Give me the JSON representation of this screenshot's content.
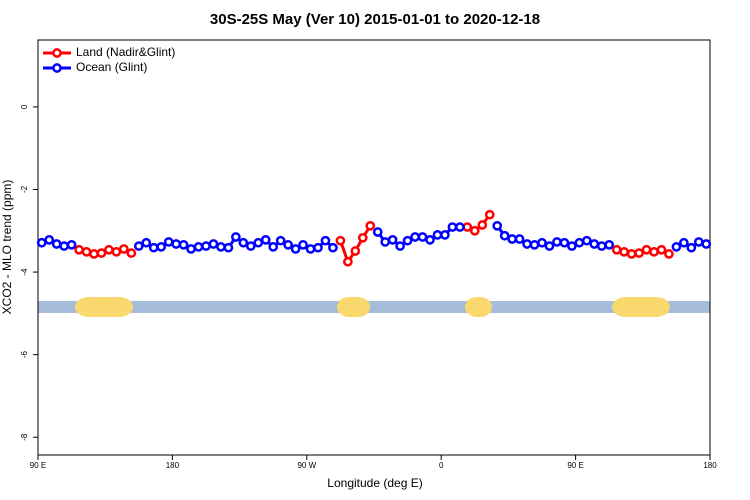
{
  "chart_data": {
    "type": "line",
    "title": "30S-25S May (Ver 10)   2015-01-01 to 2020-12-18",
    "x_label": "Longitude (deg E)",
    "y_label": "XCO2 - MLO trend (ppm)",
    "xlim": [
      90,
      540
    ],
    "ylim": [
      -8.43,
      1.62
    ],
    "xticks": [
      {
        "value": 90,
        "label": "90 E"
      },
      {
        "value": 180,
        "label": "180"
      },
      {
        "value": 270,
        "label": "90 W"
      },
      {
        "value": 360,
        "label": "0"
      },
      {
        "value": 450,
        "label": "90 E"
      },
      {
        "value": 540,
        "label": "180"
      }
    ],
    "yticks": [
      0,
      -2,
      -4,
      -6,
      -8
    ],
    "legend": "top-left",
    "x": [
      92.5,
      97.5,
      102.5,
      107.5,
      112.5,
      117.5,
      122.5,
      127.5,
      132.5,
      137.5,
      142.5,
      147.5,
      152.5,
      157.5,
      162.5,
      167.5,
      172.5,
      177.5,
      182.5,
      187.5,
      192.5,
      197.5,
      202.5,
      207.5,
      212.5,
      217.5,
      222.5,
      227.5,
      232.5,
      237.5,
      242.5,
      247.5,
      252.5,
      257.5,
      262.5,
      267.5,
      272.5,
      277.5,
      282.5,
      287.5,
      292.5,
      297.5,
      302.5,
      307.5,
      312.5,
      317.5,
      322.5,
      327.5,
      332.5,
      337.5,
      342.5,
      347.5,
      352.5,
      357.5,
      362.5,
      367.5,
      372.5,
      377.5,
      382.5,
      387.5,
      392.5,
      397.5,
      402.5,
      407.5,
      412.5,
      417.5,
      422.5,
      427.5,
      432.5,
      437.5,
      442.5,
      447.5,
      452.5,
      457.5,
      462.5,
      467.5,
      472.5,
      477.5,
      482.5,
      487.5,
      492.5,
      497.5,
      502.5,
      507.5,
      512.5,
      517.5,
      522.5,
      527.5,
      532.5,
      537.5
    ],
    "series": [
      {
        "name": "Land (Nadir&Glint)",
        "color": "#ff0000",
        "values": [
          null,
          null,
          null,
          null,
          null,
          -3.46,
          -3.51,
          -3.56,
          -3.54,
          -3.46,
          -3.51,
          -3.44,
          -3.54,
          null,
          null,
          null,
          null,
          null,
          null,
          null,
          null,
          null,
          null,
          null,
          null,
          null,
          null,
          null,
          null,
          null,
          null,
          null,
          null,
          null,
          null,
          null,
          null,
          null,
          null,
          null,
          -3.24,
          -3.75,
          -3.49,
          -3.17,
          -2.88,
          null,
          null,
          null,
          null,
          null,
          null,
          null,
          null,
          null,
          null,
          null,
          null,
          -2.91,
          -3.0,
          -2.86,
          -2.61,
          null,
          null,
          null,
          null,
          null,
          null,
          null,
          null,
          null,
          null,
          null,
          null,
          null,
          null,
          null,
          null,
          -3.46,
          -3.51,
          -3.56,
          -3.54,
          -3.46,
          -3.51,
          -3.46,
          -3.56,
          null,
          null,
          null,
          null,
          null
        ]
      },
      {
        "name": "Ocean (Glint)",
        "color": "#0000ff",
        "values": [
          -3.29,
          -3.22,
          -3.32,
          -3.37,
          -3.34,
          null,
          null,
          null,
          null,
          null,
          null,
          null,
          null,
          -3.37,
          -3.29,
          -3.41,
          -3.39,
          -3.27,
          -3.32,
          -3.34,
          -3.44,
          -3.39,
          -3.37,
          -3.32,
          -3.39,
          -3.41,
          -3.15,
          -3.29,
          -3.37,
          -3.29,
          -3.22,
          -3.39,
          -3.24,
          -3.34,
          -3.44,
          -3.34,
          -3.44,
          -3.41,
          -3.24,
          -3.41,
          null,
          null,
          null,
          null,
          null,
          -3.03,
          -3.27,
          -3.22,
          -3.37,
          -3.24,
          -3.15,
          -3.15,
          -3.22,
          -3.1,
          -3.1,
          -2.91,
          -2.91,
          null,
          null,
          null,
          null,
          -2.88,
          -3.12,
          -3.2,
          -3.2,
          -3.32,
          -3.34,
          -3.29,
          -3.37,
          -3.27,
          -3.29,
          -3.37,
          -3.29,
          -3.24,
          -3.32,
          -3.37,
          -3.34,
          null,
          null,
          null,
          null,
          null,
          null,
          null,
          null,
          -3.39,
          -3.29,
          -3.41,
          -3.27,
          -3.32
        ]
      }
    ]
  }
}
